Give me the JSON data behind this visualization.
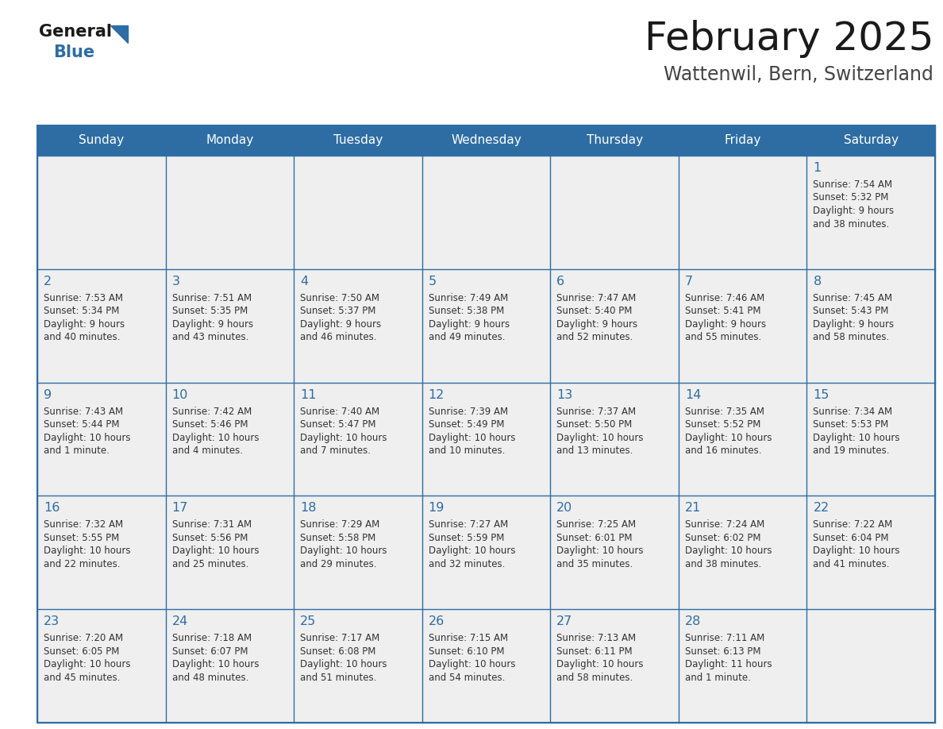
{
  "title": "February 2025",
  "subtitle": "Wattenwil, Bern, Switzerland",
  "header_bg": "#2E6DA4",
  "header_text": "#FFFFFF",
  "cell_bg": "#EFEFEF",
  "cell_text_color": "#333333",
  "day_number_color": "#2E6DA4",
  "border_color": "#2E6DA4",
  "days_of_week": [
    "Sunday",
    "Monday",
    "Tuesday",
    "Wednesday",
    "Thursday",
    "Friday",
    "Saturday"
  ],
  "calendar_data": [
    [
      null,
      null,
      null,
      null,
      null,
      null,
      {
        "day": 1,
        "sunrise": "7:54 AM",
        "sunset": "5:32 PM",
        "daylight": "9 hours\nand 38 minutes."
      }
    ],
    [
      {
        "day": 2,
        "sunrise": "7:53 AM",
        "sunset": "5:34 PM",
        "daylight": "9 hours\nand 40 minutes."
      },
      {
        "day": 3,
        "sunrise": "7:51 AM",
        "sunset": "5:35 PM",
        "daylight": "9 hours\nand 43 minutes."
      },
      {
        "day": 4,
        "sunrise": "7:50 AM",
        "sunset": "5:37 PM",
        "daylight": "9 hours\nand 46 minutes."
      },
      {
        "day": 5,
        "sunrise": "7:49 AM",
        "sunset": "5:38 PM",
        "daylight": "9 hours\nand 49 minutes."
      },
      {
        "day": 6,
        "sunrise": "7:47 AM",
        "sunset": "5:40 PM",
        "daylight": "9 hours\nand 52 minutes."
      },
      {
        "day": 7,
        "sunrise": "7:46 AM",
        "sunset": "5:41 PM",
        "daylight": "9 hours\nand 55 minutes."
      },
      {
        "day": 8,
        "sunrise": "7:45 AM",
        "sunset": "5:43 PM",
        "daylight": "9 hours\nand 58 minutes."
      }
    ],
    [
      {
        "day": 9,
        "sunrise": "7:43 AM",
        "sunset": "5:44 PM",
        "daylight": "10 hours\nand 1 minute."
      },
      {
        "day": 10,
        "sunrise": "7:42 AM",
        "sunset": "5:46 PM",
        "daylight": "10 hours\nand 4 minutes."
      },
      {
        "day": 11,
        "sunrise": "7:40 AM",
        "sunset": "5:47 PM",
        "daylight": "10 hours\nand 7 minutes."
      },
      {
        "day": 12,
        "sunrise": "7:39 AM",
        "sunset": "5:49 PM",
        "daylight": "10 hours\nand 10 minutes."
      },
      {
        "day": 13,
        "sunrise": "7:37 AM",
        "sunset": "5:50 PM",
        "daylight": "10 hours\nand 13 minutes."
      },
      {
        "day": 14,
        "sunrise": "7:35 AM",
        "sunset": "5:52 PM",
        "daylight": "10 hours\nand 16 minutes."
      },
      {
        "day": 15,
        "sunrise": "7:34 AM",
        "sunset": "5:53 PM",
        "daylight": "10 hours\nand 19 minutes."
      }
    ],
    [
      {
        "day": 16,
        "sunrise": "7:32 AM",
        "sunset": "5:55 PM",
        "daylight": "10 hours\nand 22 minutes."
      },
      {
        "day": 17,
        "sunrise": "7:31 AM",
        "sunset": "5:56 PM",
        "daylight": "10 hours\nand 25 minutes."
      },
      {
        "day": 18,
        "sunrise": "7:29 AM",
        "sunset": "5:58 PM",
        "daylight": "10 hours\nand 29 minutes."
      },
      {
        "day": 19,
        "sunrise": "7:27 AM",
        "sunset": "5:59 PM",
        "daylight": "10 hours\nand 32 minutes."
      },
      {
        "day": 20,
        "sunrise": "7:25 AM",
        "sunset": "6:01 PM",
        "daylight": "10 hours\nand 35 minutes."
      },
      {
        "day": 21,
        "sunrise": "7:24 AM",
        "sunset": "6:02 PM",
        "daylight": "10 hours\nand 38 minutes."
      },
      {
        "day": 22,
        "sunrise": "7:22 AM",
        "sunset": "6:04 PM",
        "daylight": "10 hours\nand 41 minutes."
      }
    ],
    [
      {
        "day": 23,
        "sunrise": "7:20 AM",
        "sunset": "6:05 PM",
        "daylight": "10 hours\nand 45 minutes."
      },
      {
        "day": 24,
        "sunrise": "7:18 AM",
        "sunset": "6:07 PM",
        "daylight": "10 hours\nand 48 minutes."
      },
      {
        "day": 25,
        "sunrise": "7:17 AM",
        "sunset": "6:08 PM",
        "daylight": "10 hours\nand 51 minutes."
      },
      {
        "day": 26,
        "sunrise": "7:15 AM",
        "sunset": "6:10 PM",
        "daylight": "10 hours\nand 54 minutes."
      },
      {
        "day": 27,
        "sunrise": "7:13 AM",
        "sunset": "6:11 PM",
        "daylight": "10 hours\nand 58 minutes."
      },
      {
        "day": 28,
        "sunrise": "7:11 AM",
        "sunset": "6:13 PM",
        "daylight": "11 hours\nand 1 minute."
      },
      null
    ]
  ]
}
